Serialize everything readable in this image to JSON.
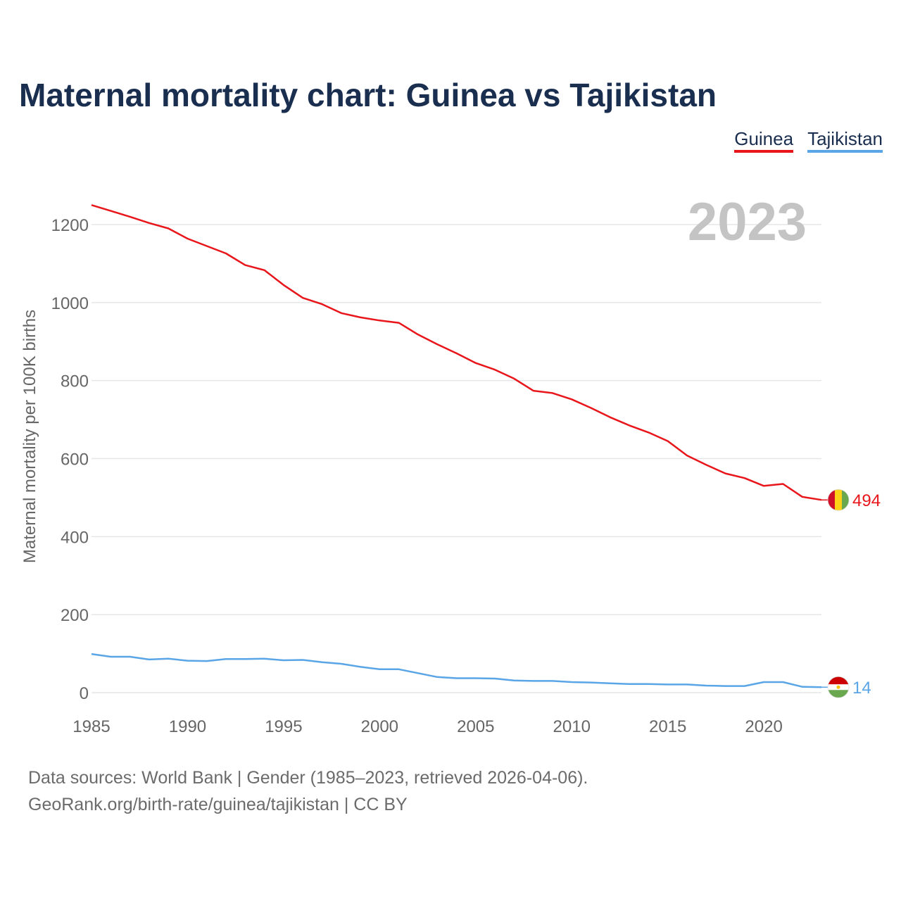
{
  "title": "Maternal mortality chart: Guinea vs Tajikistan",
  "legend": [
    {
      "name": "Guinea",
      "color": "#e8161b"
    },
    {
      "name": "Tajikistan",
      "color": "#5aa5e6"
    }
  ],
  "year_label": "2023",
  "footer": {
    "line1": "Data sources: World Bank | Gender (1985–2023, retrieved 2026-04-06).",
    "line2": "GeoRank.org/birth-rate/guinea/tajikistan | CC BY"
  },
  "chart_data": {
    "type": "line",
    "title": "Maternal mortality chart: Guinea vs Tajikistan",
    "xlabel": "",
    "ylabel": "Maternal mortality per 100K births",
    "xlim": [
      1985,
      2023
    ],
    "ylim": [
      0,
      1300
    ],
    "x_ticks": [
      1985,
      1990,
      1995,
      2000,
      2005,
      2010,
      2015,
      2020
    ],
    "y_ticks": [
      0,
      200,
      400,
      600,
      800,
      1000,
      1200
    ],
    "grid": true,
    "x": [
      1985,
      1986,
      1987,
      1988,
      1989,
      1990,
      1991,
      1992,
      1993,
      1994,
      1995,
      1996,
      1997,
      1998,
      1999,
      2000,
      2001,
      2002,
      2003,
      2004,
      2005,
      2006,
      2007,
      2008,
      2009,
      2010,
      2011,
      2012,
      2013,
      2014,
      2015,
      2016,
      2017,
      2018,
      2019,
      2020,
      2021,
      2022,
      2023
    ],
    "series": [
      {
        "name": "Guinea",
        "color": "#e8161b",
        "end_label": "494",
        "values": [
          1250,
          1235,
          1220,
          1204,
          1190,
          1164,
          1145,
          1126,
          1096,
          1083,
          1045,
          1012,
          996,
          973,
          962,
          954,
          948,
          918,
          893,
          870,
          845,
          828,
          805,
          774,
          768,
          752,
          730,
          706,
          685,
          667,
          645,
          608,
          584,
          562,
          550,
          530,
          535,
          502,
          494
        ]
      },
      {
        "name": "Tajikistan",
        "color": "#5aa5e6",
        "end_label": "14",
        "values": [
          99,
          92,
          92,
          85,
          87,
          82,
          81,
          86,
          86,
          87,
          83,
          84,
          78,
          74,
          66,
          60,
          60,
          50,
          40,
          37,
          37,
          36,
          31,
          30,
          30,
          27,
          26,
          24,
          22,
          22,
          21,
          21,
          18,
          17,
          17,
          27,
          27,
          15,
          14
        ]
      }
    ]
  }
}
